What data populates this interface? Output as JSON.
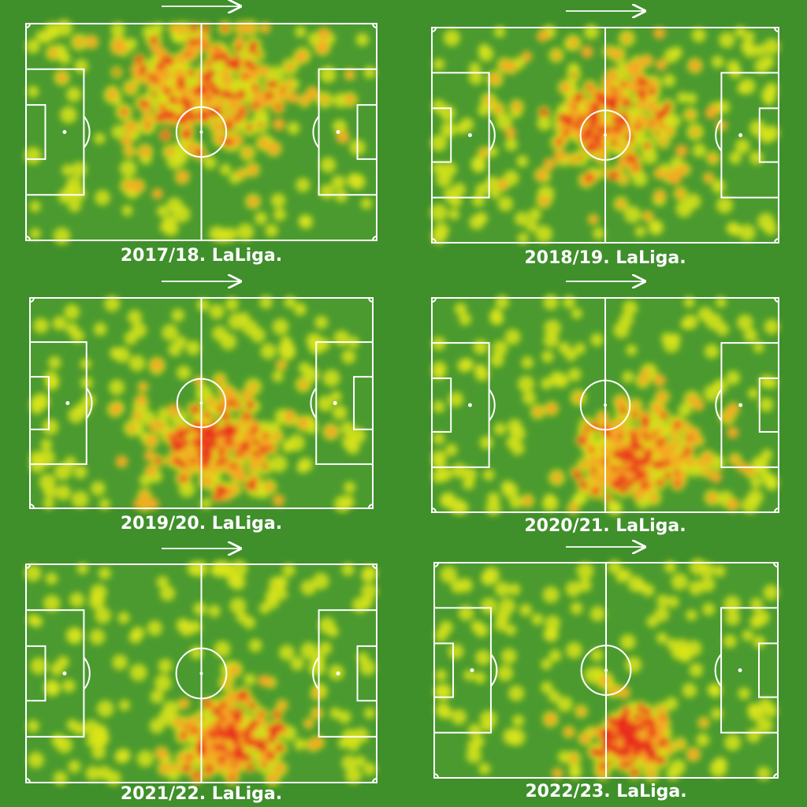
{
  "panels": [
    {
      "caption": "2017/18. LaLiga."
    },
    {
      "caption": "2018/19. LaLiga."
    },
    {
      "caption": "2019/20. LaLiga."
    },
    {
      "caption": "2020/21. LaLiga."
    },
    {
      "caption": "2021/22. LaLiga."
    },
    {
      "caption": "2022/23. LaLiga."
    }
  ]
}
